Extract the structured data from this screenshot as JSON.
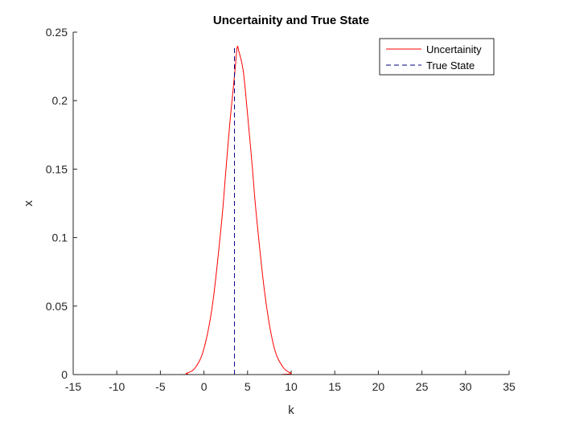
{
  "chart_data": {
    "type": "line",
    "title": "Uncertainity and True State",
    "xlabel": "k",
    "ylabel": "x",
    "xlim": [
      -15,
      35
    ],
    "ylim": [
      0,
      0.25
    ],
    "xticks": [
      -15,
      -10,
      -5,
      0,
      5,
      10,
      15,
      20,
      25,
      30,
      35
    ],
    "xtick_labels": [
      "-15",
      "-10",
      "-5",
      "0",
      "5",
      "10",
      "15",
      "20",
      "25",
      "30",
      "35"
    ],
    "yticks": [
      0,
      0.05,
      0.1,
      0.15,
      0.2,
      0.25
    ],
    "ytick_labels": [
      "0",
      "0.05",
      "0.1",
      "0.15",
      "0.2",
      "0.25"
    ],
    "grid": false,
    "legend_position": "top-right",
    "series": [
      {
        "name": "Uncertainity",
        "style": "solid",
        "color": "#ff0000",
        "x": [
          -15,
          -3,
          -2,
          -1,
          0,
          1,
          2,
          2.5,
          3,
          3.5,
          3.8,
          4,
          4.5,
          5,
          5.5,
          6,
          7,
          8,
          9,
          10,
          11,
          35
        ],
        "y": [
          0,
          0,
          0.001,
          0.005,
          0.019,
          0.052,
          0.11,
          0.148,
          0.186,
          0.218,
          0.2385,
          0.236,
          0.222,
          0.19,
          0.155,
          0.117,
          0.058,
          0.021,
          0.006,
          0.001,
          0,
          0
        ]
      },
      {
        "name": "True State",
        "style": "dashed",
        "color": "#00007f",
        "x": [
          3.5,
          3.5
        ],
        "y": [
          0,
          0.239
        ]
      }
    ]
  }
}
